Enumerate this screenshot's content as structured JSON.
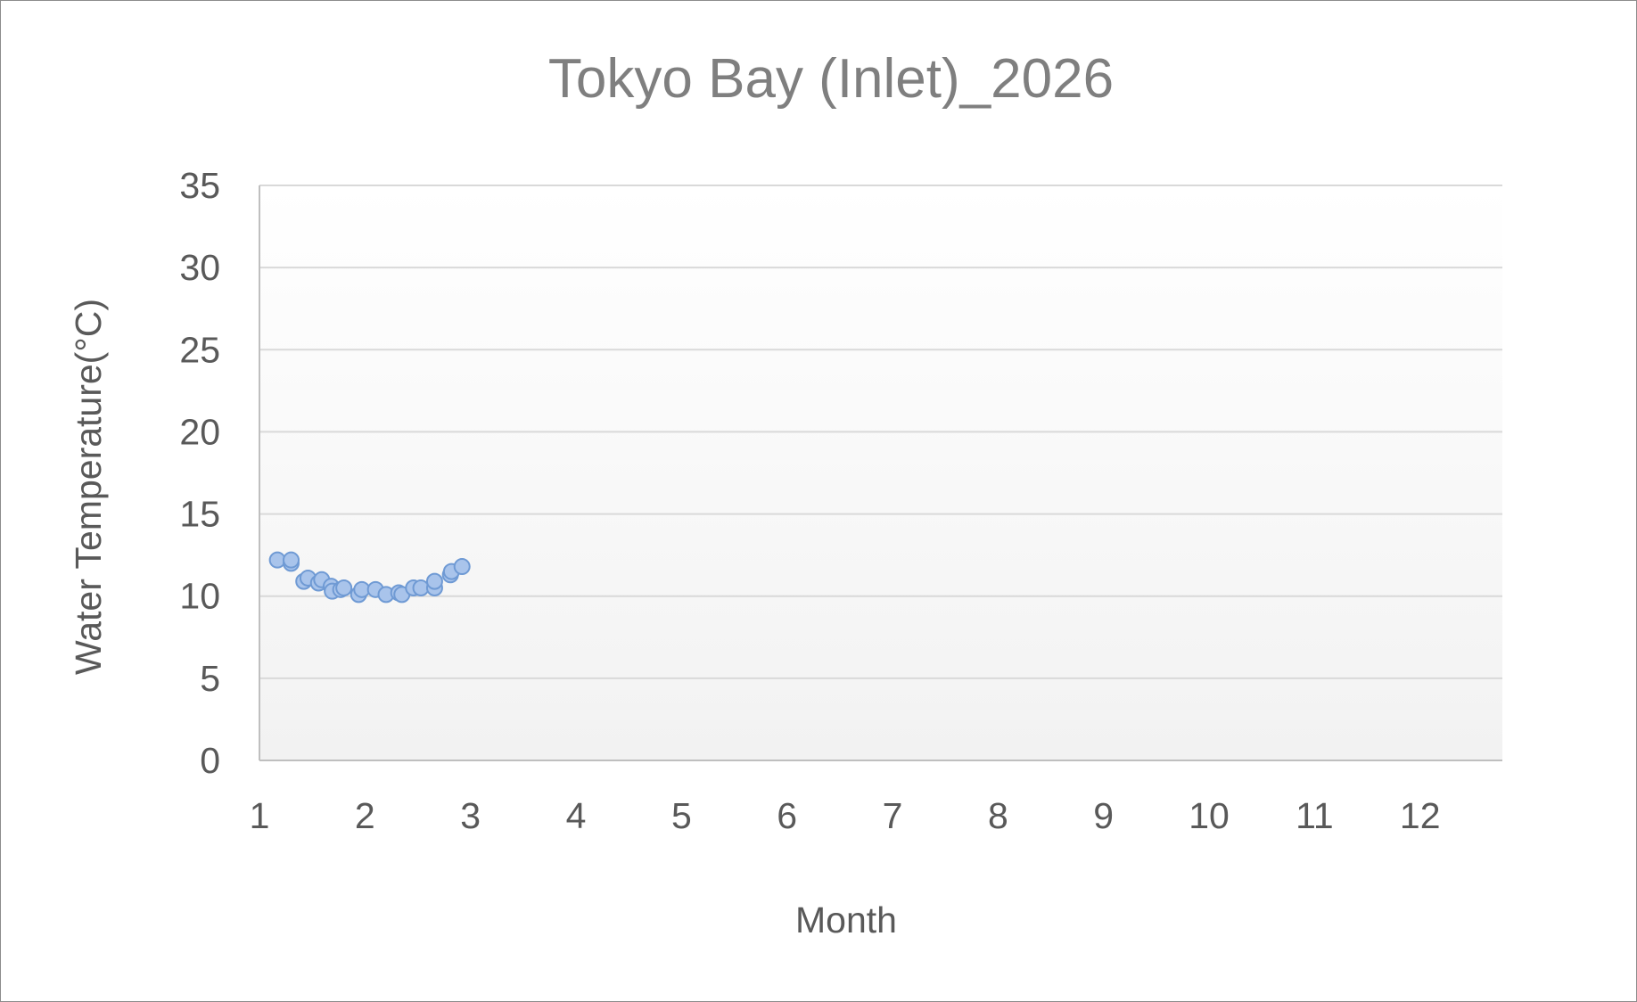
{
  "chart_data": {
    "type": "scatter",
    "title": "Tokyo Bay (Inlet)_2026",
    "xlabel": "Month",
    "ylabel": "Water Temperature(°C)",
    "xlim": [
      1,
      12.78
    ],
    "ylim": [
      0,
      35
    ],
    "xticks": [
      "1",
      "2",
      "3",
      "4",
      "5",
      "6",
      "7",
      "8",
      "9",
      "10",
      "11",
      "12"
    ],
    "yticks": [
      "0",
      "5",
      "10",
      "15",
      "20",
      "25",
      "30",
      "35"
    ],
    "grid": true,
    "legend": "none",
    "colors": {
      "marker_fill": "#a9c4eb",
      "marker_stroke": "#6f9ad4",
      "plot_gradient_top": "#ffffff",
      "plot_gradient_bottom": "#f2f2f2"
    },
    "series": [
      {
        "x": [
          1.17,
          1.3,
          1.3,
          1.42,
          1.46,
          1.56,
          1.59,
          1.68,
          1.69,
          1.77,
          1.8,
          1.94,
          1.97,
          2.1,
          2.2,
          2.32,
          2.35,
          2.46,
          2.53,
          2.66,
          2.66,
          2.81,
          2.82,
          2.92
        ],
        "y": [
          12.2,
          12.0,
          12.2,
          10.9,
          11.1,
          10.8,
          11.0,
          10.6,
          10.3,
          10.4,
          10.5,
          10.1,
          10.4,
          10.4,
          10.1,
          10.2,
          10.1,
          10.5,
          10.5,
          10.5,
          10.9,
          11.3,
          11.5,
          11.8
        ]
      }
    ]
  }
}
